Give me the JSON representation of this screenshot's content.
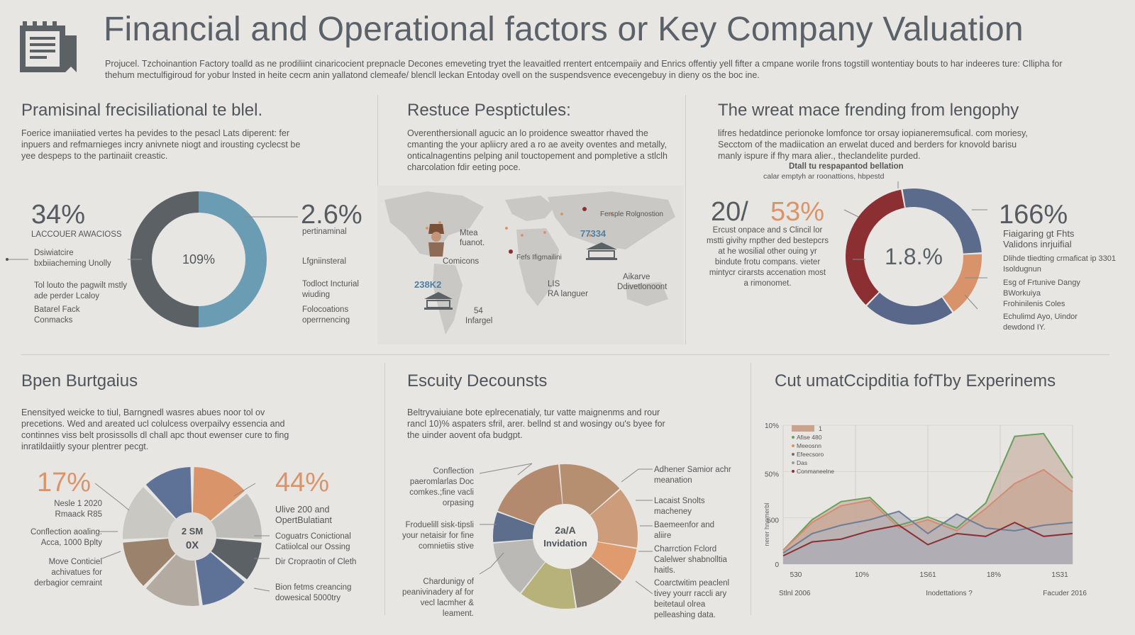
{
  "header": {
    "title": "Financial and Operational factors or Key Company Valuation",
    "intro": "Projucel. Tzchoinantion Factory toalld as ne prodiliint cinaricocient prepnacle Decones emeveting tryet the leavaitled rrentert entcempaiiy and Enrics offentiy yell fifter a cmpane worile frons togstill wontentiay bouts to har indeeres ture: Cllipha for thehum mectulfigiroud for yobur lnsted in heite cecm anin yallatond clemeafe/ blencll leckan Entoday ovell on the suspendsvence evecengebuy in dieny os the boc ine."
  },
  "panel1": {
    "title": "Pramisinal frecisiliational te blel.",
    "text": "Foerice imaniiatied vertes ha pevides to the pesacl Lats diperent: fer inpuers and refmarnieges incry anivnete niogt and irousting cyclecst be yee despeps to the partinaiit creastic.",
    "left_value": "34%",
    "left_caption": "LACCOUER AWACIOSS",
    "left_labels": [
      "Dsiwiatcire bxbiiacheming Unolly",
      "Tol louto the pagwilt mstly ade perder Lcaloy",
      "Batarel Fack Conmacks"
    ],
    "center_value": "109%",
    "right_value": "2.6%",
    "right_caption": "pertinaminal",
    "right_labels": [
      "Lfgniinsteral",
      "Todloct Incturial wiuding",
      "Folocoations operrnencing"
    ],
    "donut_values": [
      50,
      50
    ],
    "donut_colors": [
      "#6a9db3",
      "#5c6166"
    ]
  },
  "panel2": {
    "title": "Restuce Pesptictules:",
    "text": "Overenthersionall agucic an lo proidence sweattor rhaved the cmanting the your apliicry ared a ro ae aveity oventes and metally, onticalnagentins pelping anil touctopement and pompletive a stlclh charcolation fdir eeting poce.",
    "labels": {
      "mea": "Mtea",
      "fuanot": "fuanot.",
      "comicons": "Comicons",
      "figures": "Fefs Ifigmailini",
      "value1": "77334",
      "ferspla": "Fersple Rolgnostion",
      "value2": "238K2",
      "lis": "LIS",
      "ra": "RA languer",
      "num": "54",
      "infargel": "Infargel",
      "aikarve": "Aikarve",
      "divlet": "Ddivetlonoont"
    }
  },
  "panel3": {
    "title": "The wreat mace frending from lengophy",
    "text": "lifres hedatdince perionoke lomfonce tor orsay iopianeremsufical. com moriesy, Secctom of the madiication an erwelat duced and berders for knovold barisu manly ispure if fhy mara alier., theclandelite purded.",
    "top_label_1": "Dtall tu respapantod bellation",
    "top_label_2": "calar emptyh ar roonattions, hbpestd",
    "value_a": "20/",
    "value_b": "53%",
    "left_desc": "Ercust onpace and s Clincil lor mstti givihy rnpther ded bestepcrs at he wosilial other ouing yr bindute frotu compans. vieter mintycr cirarsts accenation most a rimonomet.",
    "center_value": "1.8.%",
    "right_value": "166%",
    "right_caption": "Fiaigaring gt Fhts Validons inrjuifial",
    "right_labels": [
      "Dlihde tliedting crmaficat ip 3301 Isoldugnun",
      "Esg of Frtunive Dangy BWorkuiya",
      "Frohinilenis Coles",
      "Echulimd Ayo, Uindor dewdond IY."
    ],
    "donut_values": [
      27,
      16,
      22,
      35
    ],
    "donut_colors": [
      "#5b6b8c",
      "#d9936a",
      "#59678a",
      "#8c2f33"
    ]
  },
  "panel4": {
    "title": "Bpen Burtgaius",
    "text": "Enensityed weicke to tiul, Barngnedl wasres abues noor tol ov precetions. Wed and areated ucl colulcess overpailvy essencia and continnes viss belt prosissolls dl chall apc thout ewenser cure to fing inratildaiitly syour plentrer pecgt.",
    "left_value": "17%",
    "left_caption": "Nesle 1 2020 Rmaack R85",
    "left_labels": [
      "Conflection aoaling. Acca, 1000 Bplty",
      "Move Conticiel achivatues for derbagior cemraint"
    ],
    "center_value_1": "2 SM",
    "center_value_2": "0X",
    "right_value": "44%",
    "right_caption": "Ulive 200 and OpertBulatiant",
    "right_labels": [
      "Coguatrs Conictional Catiiolcal our Ossing",
      "Dir Cropraotin of Cleth",
      "Bion fetms creancing dowesical 5000try"
    ],
    "pie_values": [
      14,
      12,
      10,
      12,
      14,
      12,
      14,
      12
    ],
    "pie_colors": [
      "#d9946a",
      "#bdbcb8",
      "#5c6166",
      "#5e7197",
      "#b3aba2",
      "#9b826d",
      "#cac8c3",
      "#5e7197"
    ]
  },
  "panel5": {
    "title": "Escuity Decounsts",
    "text": "Beltryvaiuiane bote eplrecenatialy, tur vatte maignenms and rour rancl 10)% aspaters sfril, arer. bellnd st and wosingy ou's byee for the uinder aovent ofa budgpt.",
    "center_value_1": "2a/A",
    "center_value_2": "Invidation",
    "left_labels": [
      "Conflection paeromlarlas Doc comkes.;fine vacli orpasing",
      "Froduelill sisk-tipsli your netaisir for fine comnietiis stive",
      "Chardunigy of peanivinadery af for vecl lacmher & leament."
    ],
    "right_labels": [
      "Adhener Samior achr meanation",
      "Lacaist Snolts macheney",
      "Baemeenfor and aliire",
      "Charrction Fclord Calelwer shabnolltia haitls.",
      "Coarctwitim peaclenl tivey yourr raccli ary beitetaul olrea pelleashing data."
    ],
    "donut_values": [
      15,
      14,
      8,
      12,
      13,
      13,
      7,
      18
    ],
    "donut_colors": [
      "#b58f70",
      "#cd9d7b",
      "#df9b6e",
      "#8f8373",
      "#b7b279",
      "#bbb9b5",
      "#5c6e8c",
      "#b48a6e"
    ]
  },
  "panel6": {
    "title": "Cut umatCcipditia fofTby Experinems",
    "y_ticks": [
      "10%",
      "50%",
      "500",
      "0"
    ],
    "x_ticks": [
      "530",
      "10%",
      "1S61",
      "18%",
      "1S31"
    ],
    "x_sub": [
      "Stlnl 2006",
      "Inodettations ?",
      "Facuder 2016"
    ],
    "y_label": "nerer hnemerbl",
    "legend": [
      "1",
      "Afise 480",
      "Meeosnn",
      "Efeecsoro",
      "Das",
      "Conmaneelne"
    ],
    "legend_colors": [
      "#c9a38c",
      "#6aa05a",
      "#d9946a",
      "#7d6a6a",
      "#9c9a97",
      "#8c2f33"
    ]
  },
  "chart_data": {
    "type": "area",
    "title": "Cut umatCcipditia fofTby Experinems",
    "x": [
      0,
      1,
      2,
      3,
      4,
      5,
      6,
      7,
      8,
      9,
      10
    ],
    "series": [
      {
        "name": "Afise 480",
        "color": "#6aa05a",
        "values": [
          10,
          32,
          45,
          48,
          28,
          34,
          26,
          44,
          92,
          94,
          62
        ]
      },
      {
        "name": "Meeosnn",
        "color": "#d28c74",
        "values": [
          10,
          30,
          42,
          46,
          26,
          32,
          24,
          40,
          58,
          68,
          52
        ]
      },
      {
        "name": "Efeecsoro",
        "color": "#6c7e9a",
        "values": [
          8,
          22,
          28,
          32,
          38,
          22,
          36,
          26,
          24,
          28,
          30
        ]
      },
      {
        "name": "Conmaneelne",
        "color": "#8c2f33",
        "values": [
          6,
          16,
          18,
          24,
          28,
          14,
          22,
          20,
          30,
          20,
          22
        ]
      }
    ],
    "y_ticks": [
      "0",
      "500",
      "50%",
      "10%"
    ],
    "x_ticks": [
      "530",
      "10%",
      "1S61",
      "18%",
      "1S31"
    ],
    "ylim": [
      0,
      100
    ]
  }
}
